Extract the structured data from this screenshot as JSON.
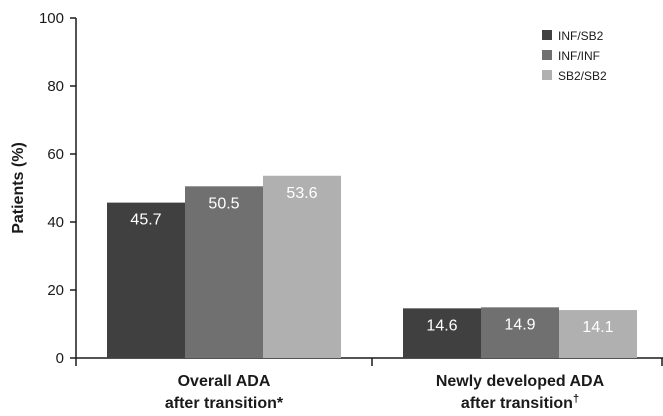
{
  "chart_data": {
    "type": "bar",
    "ylabel": "Patients (%)",
    "xlabel": "",
    "ylim": [
      0,
      100
    ],
    "yticks": [
      0,
      20,
      40,
      60,
      80,
      100
    ],
    "categories": [
      {
        "line1": "Overall ADA",
        "line2": "after transition",
        "mark": "*"
      },
      {
        "line1": "Newly developed ADA",
        "line2": "after transition",
        "mark": "†"
      }
    ],
    "series": [
      {
        "name": "INF/SB2",
        "color": "#404040",
        "values": [
          45.7,
          14.6
        ]
      },
      {
        "name": "INF/INF",
        "color": "#707070",
        "values": [
          50.5,
          14.9
        ]
      },
      {
        "name": "SB2/SB2",
        "color": "#b0b0b0",
        "values": [
          53.6,
          14.1
        ]
      }
    ],
    "value_labels": [
      [
        "45.7",
        "14.6"
      ],
      [
        "50.5",
        "14.9"
      ],
      [
        "53.6",
        "14.1"
      ]
    ],
    "legend_position": "top-right",
    "grid": false
  }
}
